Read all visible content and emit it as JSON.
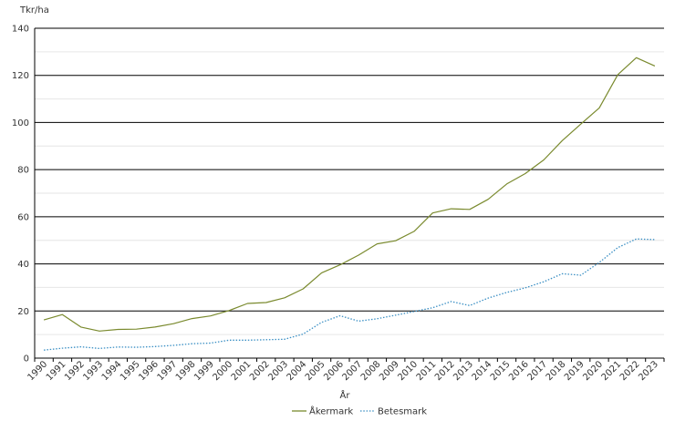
{
  "chart_data": {
    "type": "line",
    "title": "",
    "ylabel": "Tkr/ha",
    "xlabel": "År",
    "ylim": [
      0,
      140
    ],
    "yticks": [
      0,
      20,
      40,
      60,
      80,
      100,
      120,
      140
    ],
    "grid": true,
    "legend_position": "bottom",
    "x": [
      "1990",
      "1991",
      "1992",
      "1993",
      "1994",
      "1995",
      "1996",
      "1997",
      "1998",
      "1999",
      "2000",
      "2001",
      "2002",
      "2003",
      "2004",
      "2005",
      "2006",
      "2007",
      "2008",
      "2009",
      "2010",
      "2011",
      "2012",
      "2013",
      "2014",
      "2015",
      "2016",
      "2017",
      "2018",
      "2019",
      "2020",
      "2021",
      "2022",
      "2023"
    ],
    "series": [
      {
        "name": "Åkermark",
        "color": "#7a8a2e",
        "style": "solid",
        "values": [
          16.2,
          18.5,
          13.2,
          11.5,
          12.2,
          12.3,
          13.2,
          14.6,
          16.8,
          17.9,
          20.2,
          23.2,
          23.6,
          25.6,
          29.4,
          36.2,
          39.6,
          43.7,
          48.5,
          49.8,
          53.8,
          61.6,
          63.4,
          63.1,
          67.4,
          73.9,
          78.3,
          84.1,
          92.3,
          99.3,
          106.2,
          120.3,
          127.5,
          124.0
        ]
      },
      {
        "name": "Betesmark",
        "color": "#3a8fc4",
        "style": "dotted",
        "values": [
          3.4,
          4.2,
          4.8,
          4.1,
          4.7,
          4.6,
          4.9,
          5.4,
          6.1,
          6.4,
          7.6,
          7.6,
          7.8,
          8.0,
          10.2,
          15.2,
          18.0,
          15.7,
          16.7,
          18.2,
          19.8,
          21.4,
          24.0,
          22.3,
          25.5,
          27.9,
          29.8,
          32.4,
          35.8,
          35.2,
          40.6,
          46.9,
          50.6,
          50.3
        ]
      }
    ]
  }
}
